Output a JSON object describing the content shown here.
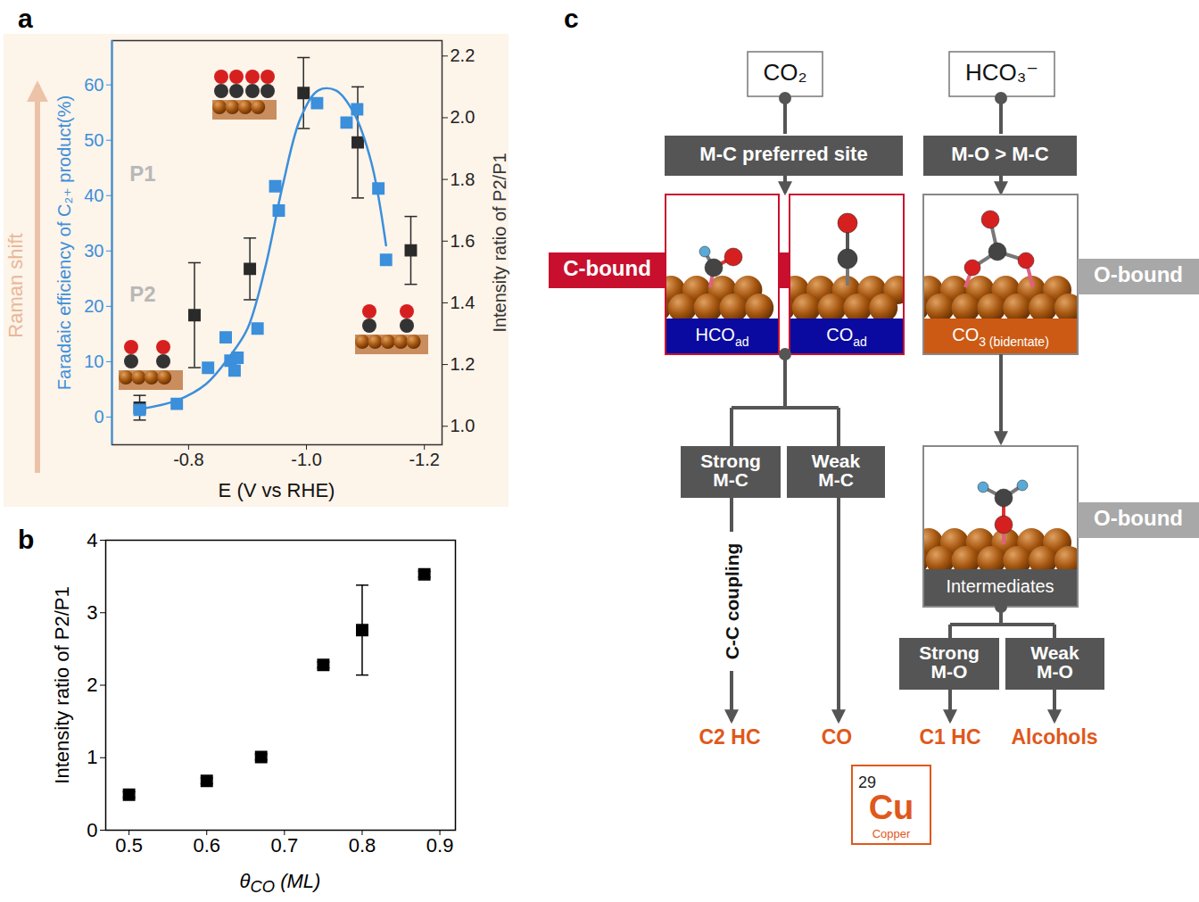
{
  "chart_data": [
    {
      "type": "scatter",
      "panel_label": "a",
      "xlabel": "E (V vs RHE)",
      "ylabel": "Faradaic efficiency of C₂₊ product(%)",
      "y2label": "Intensity ratio of P2/P1",
      "xlim": [
        -0.67,
        -1.23
      ],
      "xticks": [
        -0.8,
        {
          "value": -1,
          "label": "-1.0"
        },
        -1.2
      ],
      "ylim": [
        -5,
        68
      ],
      "yticks": [
        0,
        10,
        20,
        30,
        40,
        50,
        60
      ],
      "y2lim": [
        0.94,
        2.25
      ],
      "y2ticks": [
        {
          "value": 1,
          "label": "1.0"
        },
        1.2,
        1.4,
        1.6,
        1.8,
        {
          "value": 2,
          "label": "2.0"
        },
        2.2
      ],
      "annotations": [
        "P1",
        "P2",
        "Raman shift"
      ],
      "series": [
        {
          "type": "scatter",
          "color": "#3b8fdb",
          "marker": "square",
          "x": [
            -0.717,
            -0.78,
            -0.833,
            -0.863,
            -0.871,
            -0.878,
            -0.883,
            -0.917,
            -0.947,
            -0.953,
            -1.018,
            -1.068,
            -1.086,
            -1.122,
            -1.135
          ],
          "values": [
            1.3,
            2.4,
            8.9,
            14.4,
            10.2,
            8.4,
            10.7,
            16.0,
            41.7,
            37.3,
            56.7,
            53.2,
            55.6,
            41.3,
            28.4
          ]
        },
        {
          "type": "line",
          "color": "#3b8fdb",
          "line_style": "solid",
          "x": [
            -0.72,
            -0.78,
            -0.83,
            -0.87,
            -0.9,
            -0.93,
            -0.96,
            -0.99,
            -1.02,
            -1.05,
            -1.08,
            -1.11,
            -1.135
          ],
          "values": [
            1.5,
            3,
            6,
            11,
            16,
            27,
            42,
            54,
            59,
            59,
            55,
            46,
            31
          ]
        },
        {
          "type": "scatter",
          "color": "#2a2a2a",
          "marker": "square",
          "axis": "y2",
          "x": [
            -0.717,
            -0.81,
            -0.904,
            -0.995,
            -1.087,
            -1.177
          ],
          "values": [
            1.06,
            1.36,
            1.51,
            2.08,
            1.92,
            1.57
          ],
          "errors": [
            0.04,
            0.17,
            0.1,
            0.115,
            0.18,
            0.11
          ]
        }
      ]
    },
    {
      "type": "scatter",
      "panel_label": "b",
      "xlabel": {
        "text": "θ",
        "subscript": "CO",
        "suffix": " (ML)"
      },
      "ylabel": "Intensity ratio of P2/P1",
      "xlim": [
        0.47,
        0.92
      ],
      "xticks": [
        0.5,
        0.6,
        0.7,
        0.8,
        0.9
      ],
      "ylim": [
        0,
        4
      ],
      "yticks": [
        0,
        1,
        2,
        3,
        4
      ],
      "series": [
        {
          "type": "scatter",
          "color": "#000000",
          "marker": "square",
          "x": [
            0.5,
            0.6,
            0.67,
            0.75,
            0.8,
            0.88
          ],
          "values": [
            0.49,
            0.68,
            1.01,
            2.28,
            2.76,
            3.53
          ],
          "errors": [
            0.04,
            0.04,
            0.04,
            0.04,
            0.62,
            0.04
          ]
        }
      ]
    }
  ],
  "diagram": {
    "panel_label": "c",
    "sources": [
      "CO₂",
      "HCO₃⁻"
    ],
    "site_boxes": [
      "M-C preferred site",
      "M-O > M-C"
    ],
    "c_bound": "C-bound",
    "o_bound": [
      "O-bound",
      "O-bound"
    ],
    "adsorbates": [
      {
        "text": "HCO",
        "subscript": "ad"
      },
      {
        "text": "CO",
        "subscript": "ad"
      },
      {
        "text": "CO",
        "subscript": "3 (bidentate)"
      }
    ],
    "intermediates": "Intermediates",
    "branches": [
      "Strong M-C",
      "Weak M-C",
      "Strong M-O",
      "Weak M-O"
    ],
    "coupling": "C-C coupling",
    "products": [
      "C2 HC",
      "CO",
      "C1 HC",
      "Alcohols"
    ],
    "element": {
      "number": 29,
      "symbol": "Cu",
      "name": "Copper"
    }
  }
}
